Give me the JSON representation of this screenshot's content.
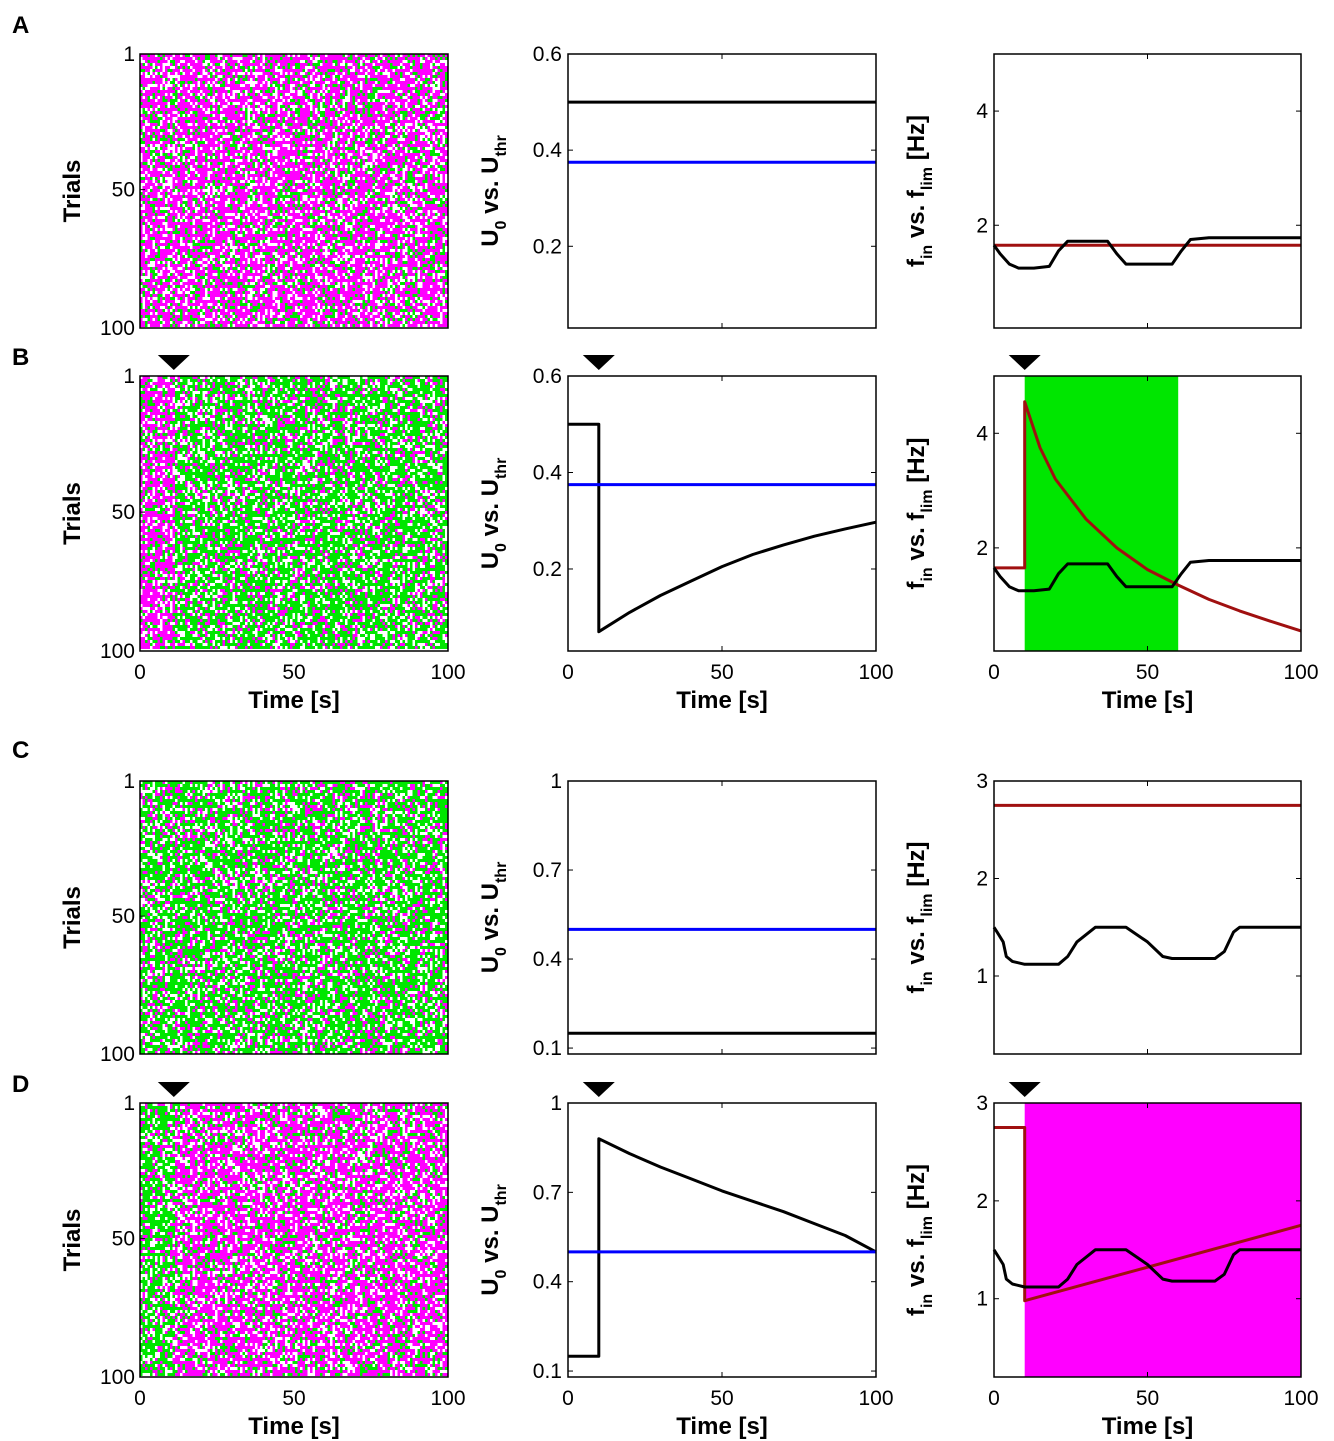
{
  "panel_labels": [
    "A",
    "B",
    "C",
    "D"
  ],
  "colors": {
    "magenta": "#ff00ff",
    "green": "#00e600",
    "u0": "#000000",
    "uthr": "#0000ff",
    "fin": "#000000",
    "flim": "#a01010"
  },
  "chart_data": [
    {
      "panel": "A",
      "column": 1,
      "type": "heatmap",
      "ylabel": "Trials",
      "yticks": [
        "1",
        "50",
        "100"
      ],
      "raster": {
        "left_color": "#ff00ff",
        "main_color": "#ff00ff",
        "switch_time": 0,
        "trials": 100,
        "duration": 100
      }
    },
    {
      "panel": "A",
      "column": 2,
      "type": "line",
      "ylabel": {
        "main": "U",
        "sub1": "0",
        "mid": " vs. U",
        "sub2": "thr"
      },
      "ylim": [
        0.03,
        0.6
      ],
      "yticks": [
        "0.2",
        "0.4",
        "0.6"
      ],
      "xlim": [
        0,
        100
      ],
      "series": [
        {
          "role": "U0",
          "color": "#000000",
          "x": [
            0,
            100
          ],
          "y": [
            0.5,
            0.5
          ]
        },
        {
          "role": "Uthr",
          "color": "#0000ff",
          "x": [
            0,
            100
          ],
          "y": [
            0.375,
            0.375
          ]
        }
      ]
    },
    {
      "panel": "A",
      "column": 3,
      "type": "line",
      "ylabel": {
        "main": "f",
        "sub1": "in",
        "mid": " vs. f",
        "sub2": "lim",
        "unit": " [Hz]"
      },
      "ylim": [
        0.2,
        5.0
      ],
      "yticks": [
        "2",
        "4"
      ],
      "xlim": [
        0,
        100
      ],
      "series": [
        {
          "role": "flim",
          "color": "#a01010",
          "x": [
            0,
            100
          ],
          "y": [
            1.65,
            1.65
          ]
        },
        {
          "role": "fin",
          "color": "#000000",
          "x": [
            0,
            2,
            5,
            8,
            13,
            18,
            21,
            24,
            37,
            40,
            43,
            58,
            61,
            64,
            70,
            100
          ],
          "y": [
            1.65,
            1.5,
            1.32,
            1.25,
            1.25,
            1.28,
            1.55,
            1.72,
            1.72,
            1.5,
            1.32,
            1.32,
            1.55,
            1.75,
            1.78,
            1.78
          ]
        }
      ]
    },
    {
      "panel": "B",
      "column": 1,
      "type": "heatmap",
      "ylabel": "Trials",
      "yticks": [
        "1",
        "50",
        "100"
      ],
      "xticks": [
        "0",
        "50",
        "100"
      ],
      "xlabel": "Time [s]",
      "marker_time": 10,
      "raster": {
        "left_color": "#ff00ff",
        "main_color": "#00e600",
        "switch_time": 11,
        "trials": 100,
        "duration": 100
      }
    },
    {
      "panel": "B",
      "column": 2,
      "type": "line",
      "ylabel": {
        "main": "U",
        "sub1": "0",
        "mid": " vs. U",
        "sub2": "thr"
      },
      "ylim": [
        0.03,
        0.6
      ],
      "yticks": [
        "0.2",
        "0.4",
        "0.6"
      ],
      "xticks": [
        "0",
        "50",
        "100"
      ],
      "xlabel": "Time [s]",
      "xlim": [
        0,
        100
      ],
      "marker_time": 10,
      "series": [
        {
          "role": "U0",
          "color": "#000000",
          "x": [
            0,
            10,
            10,
            20,
            30,
            40,
            50,
            60,
            70,
            80,
            90,
            100
          ],
          "y": [
            0.5,
            0.5,
            0.07,
            0.11,
            0.145,
            0.175,
            0.205,
            0.23,
            0.25,
            0.268,
            0.283,
            0.297
          ]
        },
        {
          "role": "Uthr",
          "color": "#0000ff",
          "x": [
            0,
            100
          ],
          "y": [
            0.375,
            0.375
          ]
        }
      ]
    },
    {
      "panel": "B",
      "column": 3,
      "type": "line",
      "ylabel": {
        "main": "f",
        "sub1": "in",
        "mid": " vs. f",
        "sub2": "lim",
        "unit": " [Hz]"
      },
      "ylim": [
        0.2,
        5.0
      ],
      "yticks": [
        "2",
        "4"
      ],
      "xticks": [
        "0",
        "50",
        "100"
      ],
      "xlabel": "Time [s]",
      "xlim": [
        0,
        100
      ],
      "marker_time": 10,
      "shade": {
        "from": 10,
        "to": 60,
        "color": "#00e600"
      },
      "series": [
        {
          "role": "flim",
          "color": "#a01010",
          "x": [
            0,
            10,
            10,
            15,
            20,
            30,
            40,
            50,
            60,
            70,
            80,
            90,
            100
          ],
          "y": [
            1.65,
            1.65,
            4.55,
            3.75,
            3.2,
            2.5,
            2.0,
            1.62,
            1.35,
            1.1,
            0.9,
            0.72,
            0.55
          ]
        },
        {
          "role": "fin",
          "color": "#000000",
          "x": [
            0,
            2,
            5,
            8,
            13,
            18,
            21,
            24,
            37,
            40,
            43,
            58,
            61,
            64,
            70,
            100
          ],
          "y": [
            1.65,
            1.5,
            1.32,
            1.25,
            1.25,
            1.28,
            1.55,
            1.72,
            1.72,
            1.5,
            1.32,
            1.32,
            1.55,
            1.75,
            1.78,
            1.78
          ]
        }
      ]
    },
    {
      "panel": "C",
      "column": 1,
      "type": "heatmap",
      "ylabel": "Trials",
      "yticks": [
        "1",
        "50",
        "100"
      ],
      "raster": {
        "left_color": "#00e600",
        "main_color": "#00e600",
        "switch_time": 0,
        "trials": 100,
        "duration": 100
      }
    },
    {
      "panel": "C",
      "column": 2,
      "type": "line",
      "ylabel": {
        "main": "U",
        "sub1": "0",
        "mid": " vs. U",
        "sub2": "thr"
      },
      "ylim": [
        0.08,
        1.0
      ],
      "yticks": [
        "0.1",
        "0.4",
        "0.7",
        "1"
      ],
      "xlim": [
        0,
        100
      ],
      "series": [
        {
          "role": "U0",
          "color": "#000000",
          "x": [
            0,
            100
          ],
          "y": [
            0.15,
            0.15
          ]
        },
        {
          "role": "Uthr",
          "color": "#0000ff",
          "x": [
            0,
            100
          ],
          "y": [
            0.5,
            0.5
          ]
        }
      ]
    },
    {
      "panel": "C",
      "column": 3,
      "type": "line",
      "ylabel": {
        "main": "f",
        "sub1": "in",
        "mid": " vs. f",
        "sub2": "lim",
        "unit": " [Hz]"
      },
      "ylim": [
        0.2,
        3.0
      ],
      "yticks": [
        "1",
        "2",
        "3"
      ],
      "xlim": [
        0,
        100
      ],
      "series": [
        {
          "role": "flim",
          "color": "#a01010",
          "x": [
            0,
            100
          ],
          "y": [
            2.75,
            2.75
          ]
        },
        {
          "role": "fin",
          "color": "#000000",
          "x": [
            0,
            1,
            3,
            4,
            6,
            10,
            17,
            21,
            24,
            27,
            33,
            36,
            40,
            43,
            50,
            55,
            58,
            63,
            72,
            75,
            78,
            80,
            100
          ],
          "y": [
            1.5,
            1.45,
            1.35,
            1.2,
            1.15,
            1.12,
            1.12,
            1.12,
            1.2,
            1.35,
            1.5,
            1.5,
            1.5,
            1.5,
            1.35,
            1.2,
            1.18,
            1.18,
            1.18,
            1.25,
            1.45,
            1.5,
            1.5
          ]
        }
      ]
    },
    {
      "panel": "D",
      "column": 1,
      "type": "heatmap",
      "ylabel": "Trials",
      "yticks": [
        "1",
        "50",
        "100"
      ],
      "xticks": [
        "0",
        "50",
        "100"
      ],
      "xlabel": "Time [s]",
      "marker_time": 10,
      "raster": {
        "left_color": "#00e600",
        "main_color": "#ff00ff",
        "switch_time": 11,
        "trials": 100,
        "duration": 100
      }
    },
    {
      "panel": "D",
      "column": 2,
      "type": "line",
      "ylabel": {
        "main": "U",
        "sub1": "0",
        "mid": " vs. U",
        "sub2": "thr"
      },
      "ylim": [
        0.08,
        1.0
      ],
      "yticks": [
        "0.1",
        "0.4",
        "0.7",
        "1"
      ],
      "xticks": [
        "0",
        "50",
        "100"
      ],
      "xlabel": "Time [s]",
      "xlim": [
        0,
        100
      ],
      "marker_time": 10,
      "series": [
        {
          "role": "U0",
          "color": "#000000",
          "x": [
            0,
            10,
            10,
            20,
            30,
            40,
            50,
            60,
            70,
            80,
            90,
            100
          ],
          "y": [
            0.15,
            0.15,
            0.88,
            0.83,
            0.785,
            0.745,
            0.705,
            0.67,
            0.635,
            0.595,
            0.555,
            0.5
          ]
        },
        {
          "role": "Uthr",
          "color": "#0000ff",
          "x": [
            0,
            100
          ],
          "y": [
            0.5,
            0.5
          ]
        }
      ]
    },
    {
      "panel": "D",
      "column": 3,
      "type": "line",
      "ylabel": {
        "main": "f",
        "sub1": "in",
        "mid": " vs. f",
        "sub2": "lim",
        "unit": " [Hz]"
      },
      "ylim": [
        0.2,
        3.0
      ],
      "yticks": [
        "1",
        "2",
        "3"
      ],
      "xticks": [
        "0",
        "50",
        "100"
      ],
      "xlabel": "Time [s]",
      "xlim": [
        0,
        100
      ],
      "marker_time": 10,
      "shade": {
        "from": 10,
        "to": 100,
        "color": "#ff00ff"
      },
      "series": [
        {
          "role": "flim",
          "color": "#a01010",
          "x": [
            0,
            10,
            10,
            100
          ],
          "y": [
            2.75,
            2.75,
            0.98,
            1.75
          ]
        },
        {
          "role": "fin",
          "color": "#000000",
          "x": [
            0,
            1,
            3,
            4,
            6,
            10,
            17,
            21,
            24,
            27,
            33,
            36,
            40,
            43,
            50,
            55,
            58,
            63,
            72,
            75,
            78,
            80,
            100
          ],
          "y": [
            1.5,
            1.45,
            1.35,
            1.2,
            1.15,
            1.12,
            1.12,
            1.12,
            1.2,
            1.35,
            1.5,
            1.5,
            1.5,
            1.5,
            1.35,
            1.2,
            1.18,
            1.18,
            1.18,
            1.25,
            1.45,
            1.5,
            1.5
          ]
        }
      ]
    }
  ]
}
